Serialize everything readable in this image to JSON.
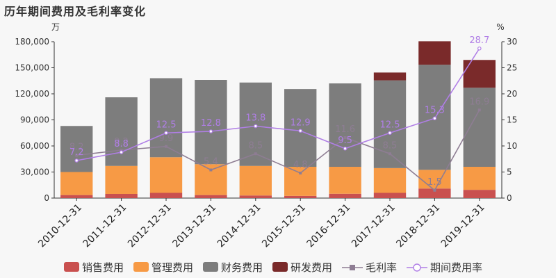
{
  "chart_data": {
    "type": "bar",
    "title": "历年期间费用及毛利率变化",
    "ylabel_left": "万",
    "ylabel_right": "%",
    "categories": [
      "2010-12-31",
      "2011-12-31",
      "2012-12-31",
      "2013-12-31",
      "2014-12-31",
      "2015-12-31",
      "2016-12-31",
      "2017-12-31",
      "2018-12-31",
      "2019-12-31"
    ],
    "ylim_left": [
      0,
      180000
    ],
    "yticks_left": [
      0,
      30000,
      60000,
      90000,
      120000,
      150000,
      180000
    ],
    "ytick_labels_left": [
      "0",
      "30,000",
      "60,000",
      "90,000",
      "120,000",
      "150,000",
      "180,000"
    ],
    "ylim_right": [
      0,
      30
    ],
    "yticks_right": [
      0,
      5,
      10,
      15,
      20,
      25,
      30
    ],
    "ytick_labels_right": [
      "0",
      "5",
      "10",
      "15",
      "20",
      "25",
      "30"
    ],
    "stacked_series": [
      {
        "name": "销售费用",
        "color": "#c9504f",
        "values": [
          3500,
          4800,
          6000,
          3500,
          3000,
          2500,
          5000,
          6000,
          11000,
          9500
        ]
      },
      {
        "name": "管理费用",
        "color": "#f79a45",
        "values": [
          26500,
          32200,
          41000,
          35500,
          34000,
          33500,
          31000,
          28500,
          21500,
          26500
        ]
      },
      {
        "name": "财务费用",
        "color": "#7d7d7d",
        "values": [
          53000,
          79000,
          91000,
          97000,
          96000,
          89500,
          96000,
          101000,
          121000,
          91000
        ]
      },
      {
        "name": "研发费用",
        "color": "#7a2a2a",
        "values": [
          0,
          0,
          0,
          0,
          0,
          0,
          0,
          9000,
          27000,
          32000
        ]
      }
    ],
    "line_series": [
      {
        "name": "毛利率",
        "color": "#8e7d93",
        "marker": "square",
        "values": [
          8.2,
          9.2,
          9.9,
          5.4,
          8.5,
          4.8,
          11.6,
          8.5,
          1.5,
          16.9
        ],
        "labels": [
          "8.2",
          "9.2",
          "9.9",
          "5.4",
          "8.5",
          "4.8",
          "11.6",
          "8.5",
          "1.5",
          "16.9"
        ]
      },
      {
        "name": "期间费用率",
        "color": "#b07ee6",
        "marker": "circle",
        "values": [
          7.2,
          8.8,
          12.5,
          12.8,
          13.8,
          12.9,
          9.5,
          12.5,
          15.3,
          28.7
        ],
        "labels": [
          "7.2",
          "8.8",
          "12.5",
          "12.8",
          "13.8",
          "12.9",
          "9.5",
          "12.5",
          "15.3",
          "28.7"
        ]
      }
    ],
    "legend_position": "bottom",
    "grid": false
  }
}
